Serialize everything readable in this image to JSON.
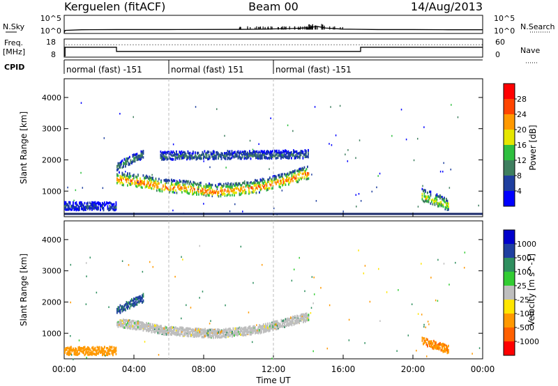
{
  "header": {
    "station": "Kerguelen (fitACF)",
    "beam": "Beam 00",
    "date": "14/Aug/2013"
  },
  "nsky_panel": {
    "left_label": "N.Sky",
    "right_label": "N.Search",
    "left_ticks": [
      "10^5",
      "10^0"
    ],
    "right_ticks": [
      "10^5",
      "10^0"
    ]
  },
  "freq_panel": {
    "left_label_line1": "Freq.",
    "left_label_line2": "[MHz]",
    "right_label": "Nave",
    "left_ticks": [
      "18",
      "8"
    ],
    "right_ticks": [
      "60",
      "0"
    ]
  },
  "cpid": {
    "label": "CPID",
    "segments": [
      {
        "label": "normal (fast) -151",
        "start_h": 0,
        "end_h": 6
      },
      {
        "label": "normal (fast) 151",
        "start_h": 6,
        "end_h": 12
      },
      {
        "label": "normal (fast) -151",
        "start_h": 12,
        "end_h": 24
      }
    ]
  },
  "colors": {
    "power_scale": [
      "#0000ff",
      "#1f3f9f",
      "#3f7f5f",
      "#2fbf3f",
      "#e6e600",
      "#ff9900",
      "#ff4500",
      "#ff0000"
    ],
    "velocity_scale": [
      "#0000cc",
      "#1f3fa0",
      "#2f8f5f",
      "#33cc33",
      "#bebebe",
      "#ffe600",
      "#ff9900",
      "#ff6000",
      "#ff0000"
    ],
    "nsky_line": "#000000",
    "ground_scatter": "#bebebe"
  },
  "chart_data": [
    {
      "type": "line",
      "title": "N.Sky / N.Search",
      "xlabel": "",
      "ylabel": "N.Sky",
      "x_hours": [
        0,
        0.05,
        1,
        3,
        6,
        10,
        11,
        12,
        13,
        14,
        14.5,
        15,
        16,
        18,
        20,
        22,
        24
      ],
      "series": [
        {
          "name": "N.Sky",
          "values": [
            0,
            5,
            8,
            9,
            9,
            10,
            11,
            14,
            18,
            30,
            80,
            25,
            12,
            9,
            9,
            8,
            8
          ]
        }
      ],
      "ylim": [
        1,
        100000
      ],
      "yscale": "log"
    },
    {
      "type": "line",
      "title": "Freq. / Nave",
      "xlabel": "",
      "ylabel": "Freq. [MHz]",
      "ylim": [
        8,
        18
      ],
      "y2label": "Nave",
      "y2lim": [
        0,
        60
      ],
      "series": [
        {
          "name": "Freq.",
          "x_hours": [
            0.05,
            0.05,
            3,
            3,
            17,
            17,
            24
          ],
          "values": [
            8,
            13.5,
            13.5,
            11,
            11,
            13.5,
            13.5
          ]
        },
        {
          "name": "Nave",
          "x_hours": [
            0.1,
            24
          ],
          "values": [
            42,
            42
          ]
        }
      ]
    },
    {
      "type": "heatmap",
      "title": "Power",
      "xlabel": "",
      "ylabel": "Slant Range [km]",
      "ylim": [
        180,
        4600
      ],
      "yticks": [
        1000,
        2000,
        3000,
        4000
      ],
      "xlim_hours": [
        0,
        24
      ],
      "colorbar": {
        "label": "Power [dB]",
        "ticks": [
          4,
          8,
          12,
          16,
          20,
          24,
          28
        ],
        "range": [
          0,
          32
        ]
      },
      "echo_regions": [
        {
          "x_hours": [
            3.0,
            14.0
          ],
          "center_km": [
            1300,
            1200,
            1050,
            1000,
            900,
            950,
            1050,
            1250,
            1500
          ],
          "value_db": 22
        },
        {
          "x_hours": [
            3.0,
            4.5
          ],
          "center_km": [
            1700,
            2100
          ],
          "value_db": 10
        },
        {
          "x_hours": [
            5.5,
            14.0
          ],
          "center_km": [
            2050,
            2100
          ],
          "value_db": 8
        },
        {
          "x_hours": [
            0.0,
            3.0
          ],
          "center_km": [
            400,
            400
          ],
          "value_db": 6
        },
        {
          "x_hours": [
            20.5,
            22.0
          ],
          "center_km": [
            750,
            450
          ],
          "value_db": 16
        }
      ]
    },
    {
      "type": "heatmap",
      "title": "Velocity",
      "xlabel": "Time UT",
      "ylabel": "Slant Range [km]",
      "ylim": [
        180,
        4600
      ],
      "yticks": [
        1000,
        2000,
        3000,
        4000
      ],
      "xlim_hours": [
        0,
        24
      ],
      "xticks": [
        "00:00",
        "04:00",
        "08:00",
        "12:00",
        "16:00",
        "20:00",
        "00:00"
      ],
      "colorbar": {
        "label": "Velocity [m s^-1]",
        "ticks": [
          1000,
          500,
          100,
          25,
          -25,
          -100,
          -500,
          -1000
        ]
      },
      "echo_regions": [
        {
          "x_hours": [
            3.0,
            14.0
          ],
          "center_km": [
            1300,
            1200,
            1050,
            1000,
            950,
            1000,
            1100,
            1300,
            1500
          ],
          "value_ms": 0,
          "ground_scatter": true
        },
        {
          "x_hours": [
            3.0,
            4.5
          ],
          "center_km": [
            1700,
            2100
          ],
          "value_ms": 600
        },
        {
          "x_hours": [
            0.0,
            3.0
          ],
          "center_km": [
            400,
            400
          ],
          "value_ms": -300
        },
        {
          "x_hours": [
            20.5,
            22.0
          ],
          "center_km": [
            700,
            450
          ],
          "value_ms": -400
        }
      ]
    }
  ]
}
